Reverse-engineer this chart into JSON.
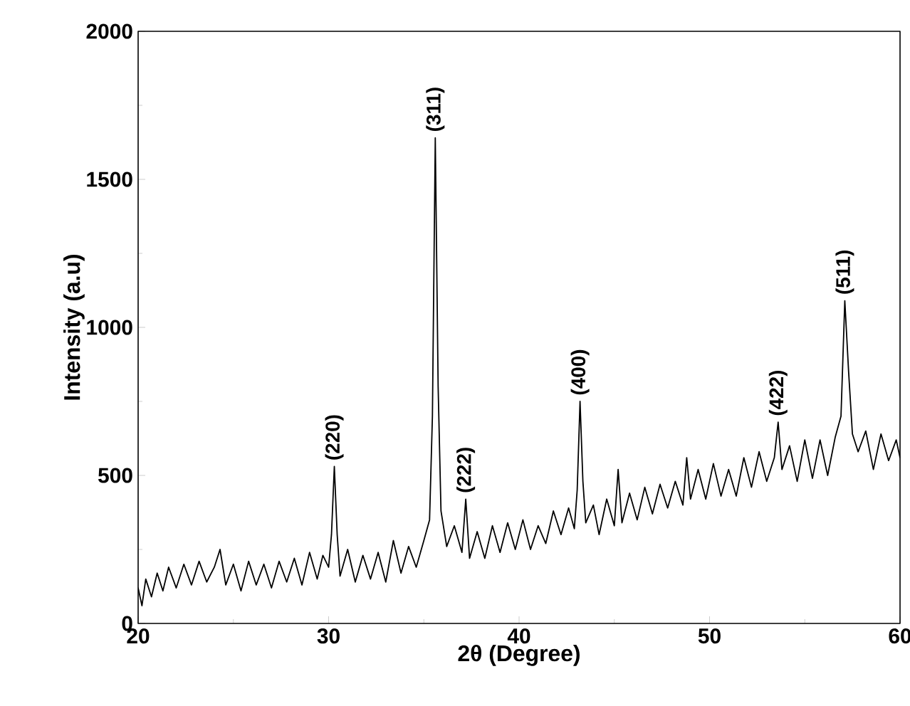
{
  "chart_data": {
    "type": "line",
    "xlabel": "2θ (Degree)",
    "ylabel": "Intensity (a.u)",
    "xlim": [
      20,
      60
    ],
    "ylim": [
      0,
      2000
    ],
    "xticks": [
      20,
      30,
      40,
      50,
      60
    ],
    "yticks": [
      0,
      500,
      1000,
      1500,
      2000
    ],
    "marker": "none",
    "line_style": "solid",
    "annotations": [
      {
        "text": "(220)",
        "x": 30.3,
        "y": 530
      },
      {
        "text": "(311)",
        "x": 35.6,
        "y": 1640
      },
      {
        "text": "(222)",
        "x": 37.2,
        "y": 420
      },
      {
        "text": "(400)",
        "x": 43.2,
        "y": 750
      },
      {
        "text": "(422)",
        "x": 53.6,
        "y": 680
      },
      {
        "text": "(511)",
        "x": 57.1,
        "y": 1090
      }
    ],
    "series": [
      {
        "color": "#000000",
        "x": [
          20.0,
          20.2,
          20.4,
          20.7,
          21.0,
          21.3,
          21.6,
          22.0,
          22.4,
          22.8,
          23.2,
          23.6,
          24.0,
          24.3,
          24.6,
          25.0,
          25.4,
          25.8,
          26.2,
          26.6,
          27.0,
          27.4,
          27.8,
          28.2,
          28.6,
          29.0,
          29.4,
          29.7,
          30.0,
          30.15,
          30.3,
          30.45,
          30.6,
          31.0,
          31.4,
          31.8,
          32.2,
          32.6,
          33.0,
          33.4,
          33.8,
          34.2,
          34.6,
          35.0,
          35.3,
          35.45,
          35.6,
          35.75,
          35.9,
          36.2,
          36.6,
          37.0,
          37.2,
          37.4,
          37.8,
          38.2,
          38.6,
          39.0,
          39.4,
          39.8,
          40.2,
          40.6,
          41.0,
          41.4,
          41.8,
          42.2,
          42.6,
          42.9,
          43.05,
          43.2,
          43.35,
          43.5,
          43.9,
          44.2,
          44.6,
          45.0,
          45.2,
          45.4,
          45.8,
          46.2,
          46.6,
          47.0,
          47.4,
          47.8,
          48.2,
          48.6,
          48.8,
          49.0,
          49.4,
          49.8,
          50.2,
          50.6,
          51.0,
          51.4,
          51.8,
          52.2,
          52.6,
          53.0,
          53.4,
          53.6,
          53.8,
          54.2,
          54.6,
          55.0,
          55.4,
          55.8,
          56.2,
          56.6,
          56.9,
          57.1,
          57.3,
          57.5,
          57.8,
          58.2,
          58.6,
          59.0,
          59.4,
          59.8,
          60.0
        ],
        "values": [
          120,
          60,
          150,
          90,
          170,
          110,
          190,
          120,
          200,
          130,
          210,
          140,
          190,
          250,
          130,
          200,
          110,
          210,
          130,
          200,
          120,
          210,
          140,
          220,
          130,
          240,
          150,
          230,
          190,
          300,
          530,
          300,
          160,
          250,
          140,
          230,
          150,
          240,
          140,
          280,
          170,
          260,
          190,
          280,
          350,
          700,
          1640,
          800,
          380,
          260,
          330,
          240,
          420,
          220,
          310,
          220,
          330,
          240,
          340,
          250,
          350,
          250,
          330,
          270,
          380,
          300,
          390,
          320,
          450,
          750,
          480,
          340,
          400,
          300,
          420,
          330,
          520,
          340,
          440,
          350,
          460,
          370,
          470,
          390,
          480,
          400,
          560,
          420,
          520,
          420,
          540,
          430,
          520,
          430,
          560,
          460,
          580,
          480,
          560,
          680,
          520,
          600,
          480,
          620,
          490,
          620,
          500,
          630,
          700,
          1090,
          850,
          640,
          580,
          650,
          520,
          640,
          550,
          620,
          560
        ]
      }
    ]
  }
}
